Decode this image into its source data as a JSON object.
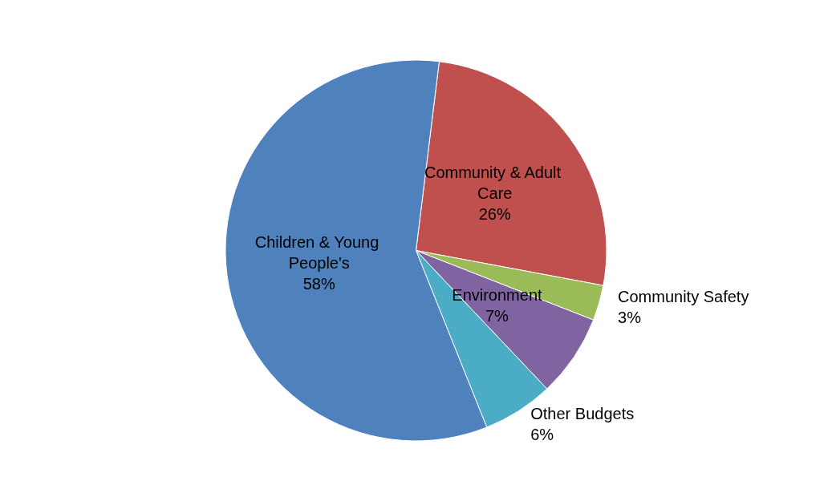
{
  "chart_data": {
    "type": "pie",
    "categories": [
      "Community & Adult Care",
      "Community Safety",
      "Environment",
      "Other Budgets",
      "Children & Young People's"
    ],
    "values": [
      26,
      3,
      7,
      6,
      58
    ],
    "value_labels": [
      "26%",
      "3%",
      "7%",
      "6%",
      "58%"
    ],
    "colors": [
      "#c0504d",
      "#9bbb59",
      "#8064a2",
      "#4bacc6",
      "#4f81bd"
    ],
    "legend": false
  }
}
